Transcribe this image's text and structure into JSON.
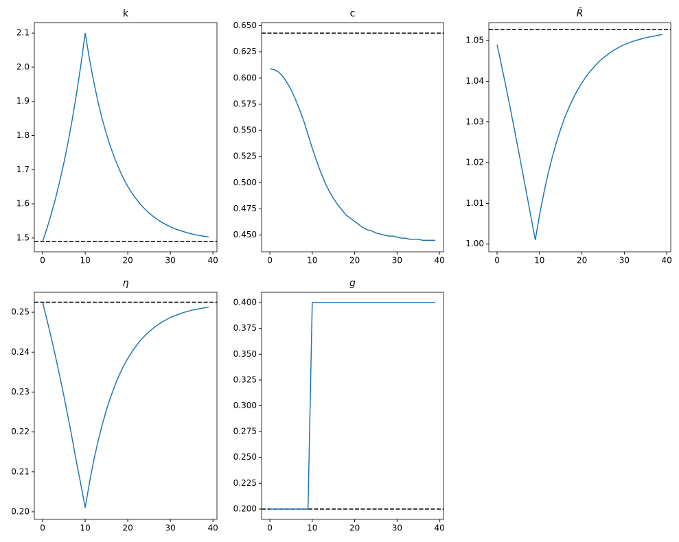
{
  "chart_data": [
    {
      "type": "line",
      "title": "k",
      "x": [
        0,
        1,
        2,
        3,
        4,
        5,
        6,
        7,
        8,
        9,
        10,
        11,
        12,
        13,
        14,
        15,
        16,
        17,
        18,
        19,
        20,
        21,
        22,
        23,
        24,
        25,
        26,
        27,
        28,
        29,
        30,
        31,
        32,
        33,
        34,
        35,
        36,
        37,
        38,
        39
      ],
      "values": [
        1.49,
        1.527,
        1.569,
        1.614,
        1.665,
        1.72,
        1.782,
        1.85,
        1.925,
        2.008,
        2.1,
        2.024,
        1.958,
        1.899,
        1.848,
        1.804,
        1.765,
        1.731,
        1.701,
        1.674,
        1.651,
        1.631,
        1.614,
        1.598,
        1.585,
        1.573,
        1.563,
        1.554,
        1.546,
        1.539,
        1.533,
        1.527,
        1.523,
        1.519,
        1.515,
        1.512,
        1.509,
        1.507,
        1.505,
        1.503
      ],
      "color": "#1f77b4",
      "hline": 1.49,
      "hline_color": "#000000",
      "xlim": [
        -1.95,
        40.95
      ],
      "xticks": [
        0,
        10,
        20,
        30,
        40
      ],
      "ylim": [
        1.4595,
        2.1305
      ],
      "yticks": [
        1.5,
        1.6,
        1.7,
        1.8,
        1.9,
        {
          "value": 2,
          "label": "2.0"
        },
        2.1
      ]
    },
    {
      "type": "line",
      "title": "c",
      "x": [
        0,
        1,
        2,
        3,
        4,
        5,
        6,
        7,
        8,
        9,
        10,
        11,
        12,
        13,
        14,
        15,
        16,
        17,
        18,
        19,
        20,
        21,
        22,
        23,
        24,
        25,
        26,
        27,
        28,
        29,
        30,
        31,
        32,
        33,
        34,
        35,
        36,
        37,
        38,
        39
      ],
      "values": [
        0.609,
        0.608,
        0.606,
        0.602,
        0.596,
        0.589,
        0.58,
        0.57,
        0.559,
        0.546,
        0.533,
        0.521,
        0.51,
        0.5,
        0.492,
        0.485,
        0.479,
        0.474,
        0.469,
        0.466,
        0.463,
        0.46,
        0.457,
        0.455,
        0.454,
        0.452,
        0.451,
        0.45,
        0.449,
        0.449,
        0.448,
        0.447,
        0.447,
        0.446,
        0.446,
        0.446,
        0.445,
        0.445,
        0.445,
        0.445
      ],
      "color": "#1f77b4",
      "hline": 0.643,
      "hline_color": "#000000",
      "xlim": [
        -1.95,
        40.95
      ],
      "xticks": [
        0,
        10,
        20,
        30,
        40
      ],
      "ylim": [
        0.434,
        0.653
      ],
      "yticks": [
        {
          "value": 0.45,
          "label": "0.450"
        },
        {
          "value": 0.475,
          "label": "0.475"
        },
        {
          "value": 0.5,
          "label": "0.500"
        },
        {
          "value": 0.525,
          "label": "0.525"
        },
        {
          "value": 0.55,
          "label": "0.550"
        },
        {
          "value": 0.575,
          "label": "0.575"
        },
        {
          "value": 0.6,
          "label": "0.600"
        },
        {
          "value": 0.625,
          "label": "0.625"
        },
        {
          "value": 0.65,
          "label": "0.650"
        }
      ]
    },
    {
      "type": "line",
      "title": "R̄",
      "x": [
        0,
        1,
        2,
        3,
        4,
        5,
        6,
        7,
        8,
        9,
        10,
        11,
        12,
        13,
        14,
        15,
        16,
        17,
        18,
        19,
        20,
        21,
        22,
        23,
        24,
        25,
        26,
        27,
        28,
        29,
        30,
        31,
        32,
        33,
        34,
        35,
        36,
        37,
        38,
        39
      ],
      "values": [
        1.049,
        1.0441,
        1.0391,
        1.0339,
        1.0286,
        1.0232,
        1.0177,
        1.0122,
        1.0066,
        1.001,
        1.0071,
        1.0124,
        1.0172,
        1.0213,
        1.025,
        1.0283,
        1.0312,
        1.0337,
        1.0359,
        1.0379,
        1.0396,
        1.0412,
        1.0425,
        1.0437,
        1.0448,
        1.0457,
        1.0465,
        1.0473,
        1.0479,
        1.0485,
        1.049,
        1.0494,
        1.0498,
        1.0501,
        1.0504,
        1.0507,
        1.0509,
        1.0511,
        1.0513,
        1.0515
      ],
      "color": "#1f77b4",
      "hline": 1.0527,
      "hline_color": "#000000",
      "xlim": [
        -1.95,
        40.95
      ],
      "xticks": [
        0,
        10,
        20,
        30,
        40
      ],
      "ylim": [
        0.9981,
        1.0544
      ],
      "yticks": [
        {
          "value": 1,
          "label": "1.00"
        },
        1.01,
        1.02,
        1.03,
        1.04,
        1.05
      ]
    },
    {
      "type": "line",
      "title": "η",
      "x": [
        0,
        1,
        2,
        3,
        4,
        5,
        6,
        7,
        8,
        9,
        10,
        11,
        12,
        13,
        14,
        15,
        16,
        17,
        18,
        19,
        20,
        21,
        22,
        23,
        24,
        25,
        26,
        27,
        28,
        29,
        30,
        31,
        32,
        33,
        34,
        35,
        36,
        37,
        38,
        39
      ],
      "values": [
        0.2525,
        0.2482,
        0.2437,
        0.239,
        0.2341,
        0.229,
        0.2236,
        0.218,
        0.2122,
        0.2067,
        0.201,
        0.2073,
        0.2128,
        0.2176,
        0.2218,
        0.2256,
        0.2288,
        0.2317,
        0.2343,
        0.2365,
        0.2384,
        0.2401,
        0.2416,
        0.243,
        0.2441,
        0.2451,
        0.246,
        0.2468,
        0.2475,
        0.2481,
        0.2487,
        0.2491,
        0.2495,
        0.2499,
        0.2502,
        0.2505,
        0.2507,
        0.2509,
        0.2511,
        0.2513
      ],
      "color": "#1f77b4",
      "hline": 0.2525,
      "hline_color": "#000000",
      "xlim": [
        -1.95,
        40.95
      ],
      "xticks": [
        0,
        10,
        20,
        30,
        40
      ],
      "ylim": [
        0.1981,
        0.255
      ],
      "yticks": [
        {
          "value": 0.2,
          "label": "0.20"
        },
        0.21,
        0.22,
        0.23,
        0.24,
        0.25
      ]
    },
    {
      "type": "line",
      "title": "g",
      "x": [
        0,
        1,
        2,
        3,
        4,
        5,
        6,
        7,
        8,
        9,
        10,
        11,
        12,
        13,
        14,
        15,
        16,
        17,
        18,
        19,
        20,
        21,
        22,
        23,
        24,
        25,
        26,
        27,
        28,
        29,
        30,
        31,
        32,
        33,
        34,
        35,
        36,
        37,
        38,
        39
      ],
      "values": [
        0.2,
        0.2,
        0.2,
        0.2,
        0.2,
        0.2,
        0.2,
        0.2,
        0.2,
        0.2,
        0.4,
        0.4,
        0.4,
        0.4,
        0.4,
        0.4,
        0.4,
        0.4,
        0.4,
        0.4,
        0.4,
        0.4,
        0.4,
        0.4,
        0.4,
        0.4,
        0.4,
        0.4,
        0.4,
        0.4,
        0.4,
        0.4,
        0.4,
        0.4,
        0.4,
        0.4,
        0.4,
        0.4,
        0.4,
        0.4
      ],
      "color": "#1f77b4",
      "hline": 0.2,
      "hline_color": "#000000",
      "xlim": [
        -1.95,
        40.95
      ],
      "xticks": [
        0,
        10,
        20,
        30,
        40
      ],
      "ylim": [
        0.19,
        0.41
      ],
      "yticks": [
        {
          "value": 0.2,
          "label": "0.200"
        },
        {
          "value": 0.225,
          "label": "0.225"
        },
        {
          "value": 0.25,
          "label": "0.250"
        },
        {
          "value": 0.275,
          "label": "0.275"
        },
        {
          "value": 0.3,
          "label": "0.300"
        },
        {
          "value": 0.325,
          "label": "0.325"
        },
        {
          "value": 0.35,
          "label": "0.350"
        },
        {
          "value": 0.375,
          "label": "0.375"
        },
        {
          "value": 0.4,
          "label": "0.400"
        }
      ]
    }
  ]
}
